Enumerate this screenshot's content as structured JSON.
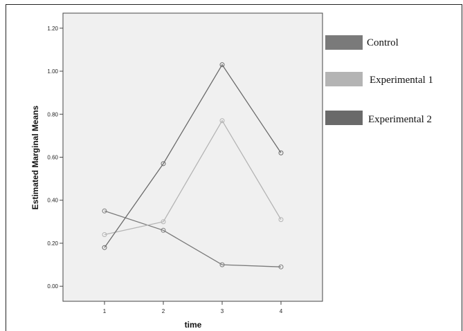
{
  "chart_data": {
    "type": "line",
    "title": "",
    "xlabel": "time",
    "ylabel": "Estimated Marginal Means",
    "categories": [
      "1",
      "2",
      "3",
      "4"
    ],
    "ylim": [
      -0.07,
      1.27
    ],
    "yticks": [
      "0.00",
      "0.20",
      "0.40",
      "0.60",
      "0.80",
      "1.00",
      "1.20"
    ],
    "ytick_values": [
      0.0,
      0.2,
      0.4,
      0.6,
      0.8,
      1.0,
      1.2
    ],
    "grid": false,
    "legend_position": "right",
    "series": [
      {
        "name": "Control",
        "values": [
          0.35,
          0.26,
          0.1,
          0.09
        ],
        "color": "#7a7a7a"
      },
      {
        "name": "Experimental 1",
        "values": [
          0.24,
          0.3,
          0.77,
          0.31
        ],
        "color": "#b4b4b4"
      },
      {
        "name": "Experimental 2",
        "values": [
          0.18,
          0.57,
          1.03,
          0.62
        ],
        "color": "#6a6a6a"
      }
    ]
  }
}
